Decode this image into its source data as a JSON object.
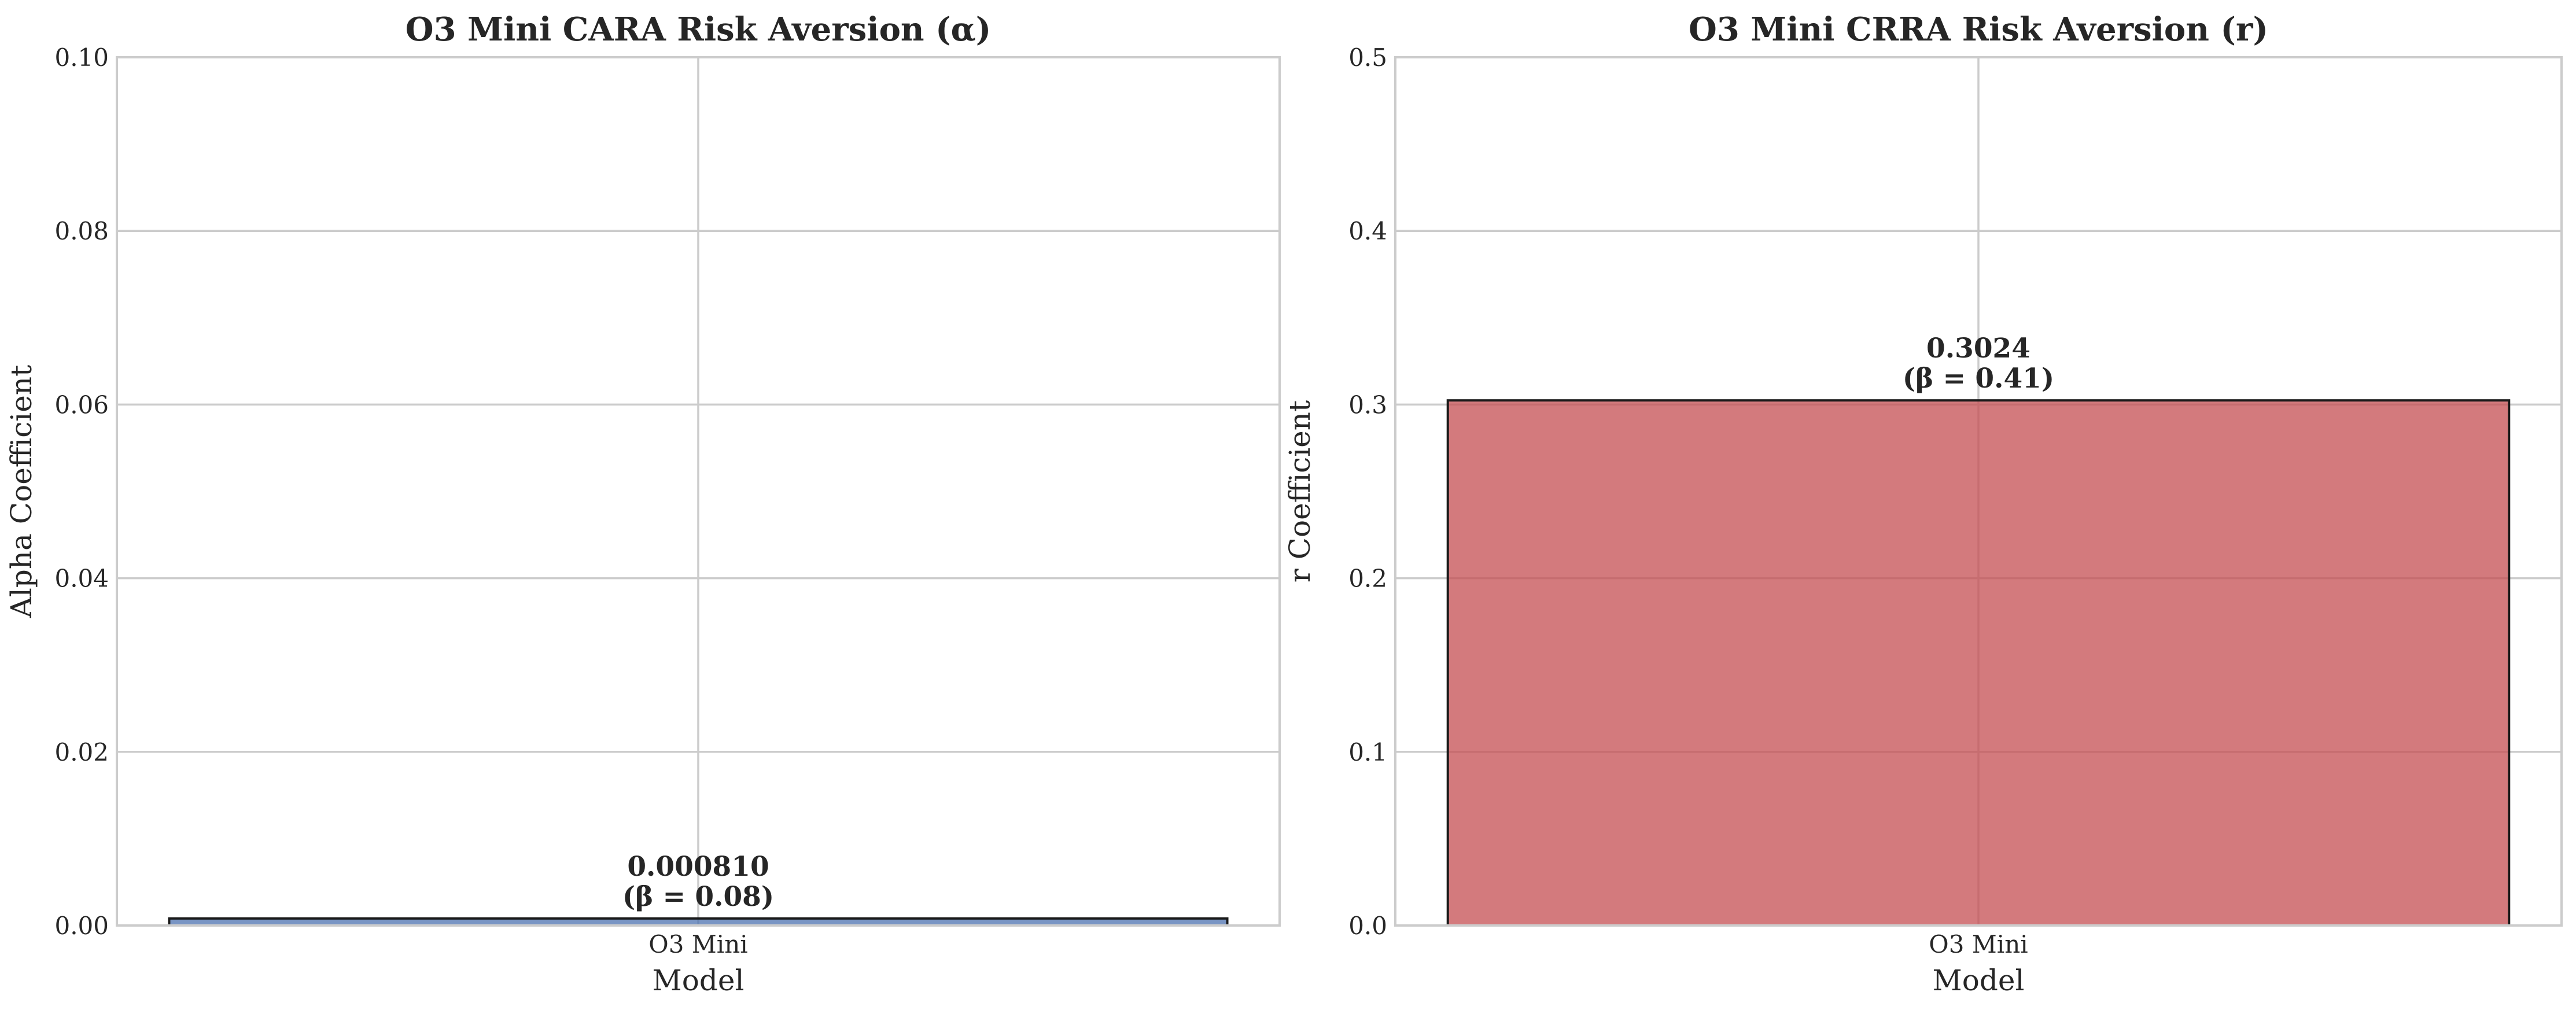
{
  "chart_data": [
    {
      "type": "bar",
      "title": "O3 Mini CARA Risk Aversion (α)",
      "xlabel": "Model",
      "ylabel": "Alpha Coefficient",
      "categories": [
        "O3 Mini"
      ],
      "values": [
        0.00081
      ],
      "value_labels": [
        "0.000810",
        "(β = 0.08)"
      ],
      "ylim": [
        0,
        0.1
      ],
      "yticks": [
        0.0,
        0.02,
        0.04,
        0.06,
        0.08,
        0.1
      ],
      "ytick_labels": [
        "0.00",
        "0.02",
        "0.04",
        "0.06",
        "0.08",
        "0.10"
      ],
      "grid": true,
      "colors": {
        "bar": "#4c72b0",
        "edge": "#1a1a1a"
      }
    },
    {
      "type": "bar",
      "title": "O3 Mini CRRA Risk Aversion (r)",
      "xlabel": "Model",
      "ylabel": "r Coefficient",
      "categories": [
        "O3 Mini"
      ],
      "values": [
        0.3024
      ],
      "value_labels": [
        "0.3024",
        "(β = 0.41)"
      ],
      "ylim": [
        0,
        0.5
      ],
      "yticks": [
        0.0,
        0.1,
        0.2,
        0.3,
        0.4,
        0.5
      ],
      "ytick_labels": [
        "0.0",
        "0.1",
        "0.2",
        "0.3",
        "0.4",
        "0.5"
      ],
      "grid": true,
      "colors": {
        "bar": "#c44e52",
        "edge": "#1a1a1a"
      }
    }
  ]
}
